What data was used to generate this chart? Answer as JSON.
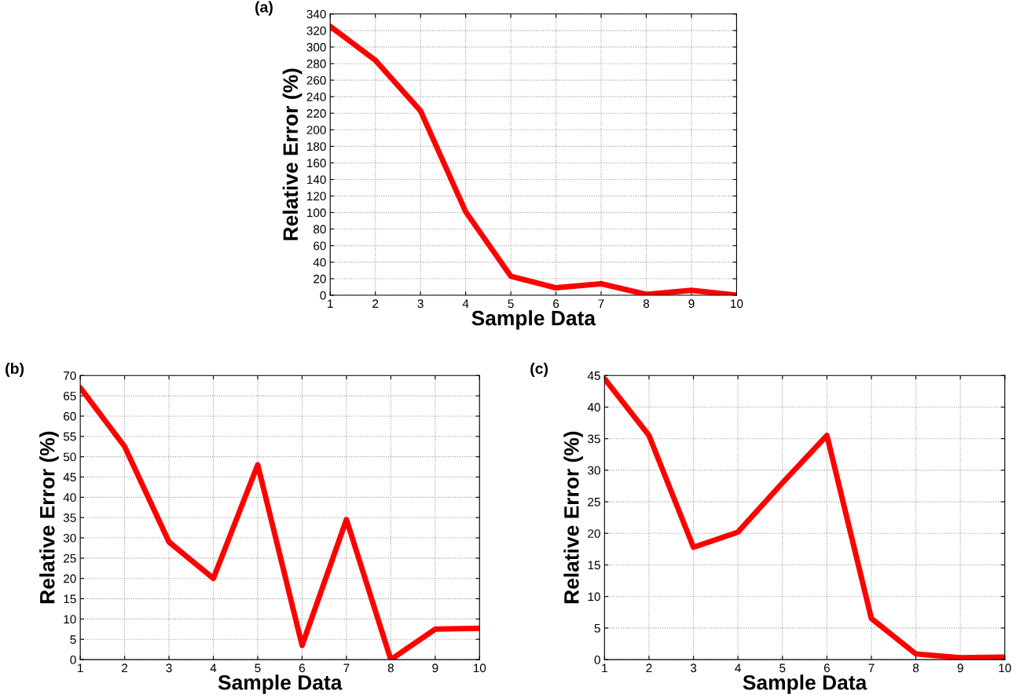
{
  "chart_data": [
    {
      "type": "line",
      "annotations": [
        "(a)"
      ],
      "xlabel": "Sample Data",
      "ylabel": "Relative Error (%)",
      "x": [
        1,
        2,
        3,
        4,
        5,
        6,
        7,
        8,
        9,
        10
      ],
      "xlim": [
        1,
        10
      ],
      "xticks": [
        1,
        2,
        3,
        4,
        5,
        6,
        7,
        8,
        9,
        10
      ],
      "ylim": [
        0,
        340
      ],
      "yticks": [
        0,
        20,
        40,
        60,
        80,
        100,
        120,
        140,
        160,
        180,
        200,
        220,
        240,
        260,
        280,
        300,
        320,
        340
      ],
      "grid": true,
      "marker": "none",
      "line_style": "solid",
      "series": [
        {
          "color": "#ff0000",
          "values": [
            325,
            284,
            223,
            101,
            23,
            9,
            14,
            1,
            6,
            0
          ]
        }
      ]
    },
    {
      "type": "line",
      "annotations": [
        "(b)"
      ],
      "xlabel": "Sample Data",
      "ylabel": "Relative Error (%)",
      "x": [
        1,
        2,
        3,
        4,
        5,
        6,
        7,
        8,
        9,
        10
      ],
      "xlim": [
        1,
        10
      ],
      "xticks": [
        1,
        2,
        3,
        4,
        5,
        6,
        7,
        8,
        9,
        10
      ],
      "ylim": [
        0,
        70
      ],
      "yticks": [
        0,
        5,
        10,
        15,
        20,
        25,
        30,
        35,
        40,
        45,
        50,
        55,
        60,
        65,
        70
      ],
      "grid": true,
      "marker": "none",
      "line_style": "solid",
      "series": [
        {
          "color": "#ff0000",
          "values": [
            67,
            52.5,
            29,
            20,
            48,
            3.5,
            34.5,
            0,
            7.5,
            7.7
          ]
        }
      ]
    },
    {
      "type": "line",
      "annotations": [
        "(c)"
      ],
      "xlabel": "Sample Data",
      "ylabel": "Relative Error (%)",
      "x": [
        1,
        2,
        3,
        4,
        5,
        6,
        7,
        8,
        9,
        10
      ],
      "xlim": [
        1,
        10
      ],
      "xticks": [
        1,
        2,
        3,
        4,
        5,
        6,
        7,
        8,
        9,
        10
      ],
      "ylim": [
        0,
        45
      ],
      "yticks": [
        0,
        5,
        10,
        15,
        20,
        25,
        30,
        35,
        40,
        45
      ],
      "grid": true,
      "marker": "none",
      "line_style": "solid",
      "series": [
        {
          "color": "#ff0000",
          "values": [
            44.5,
            35.5,
            17.8,
            20.2,
            28,
            35.5,
            6.5,
            0.9,
            0.3,
            0.4
          ]
        }
      ]
    }
  ]
}
